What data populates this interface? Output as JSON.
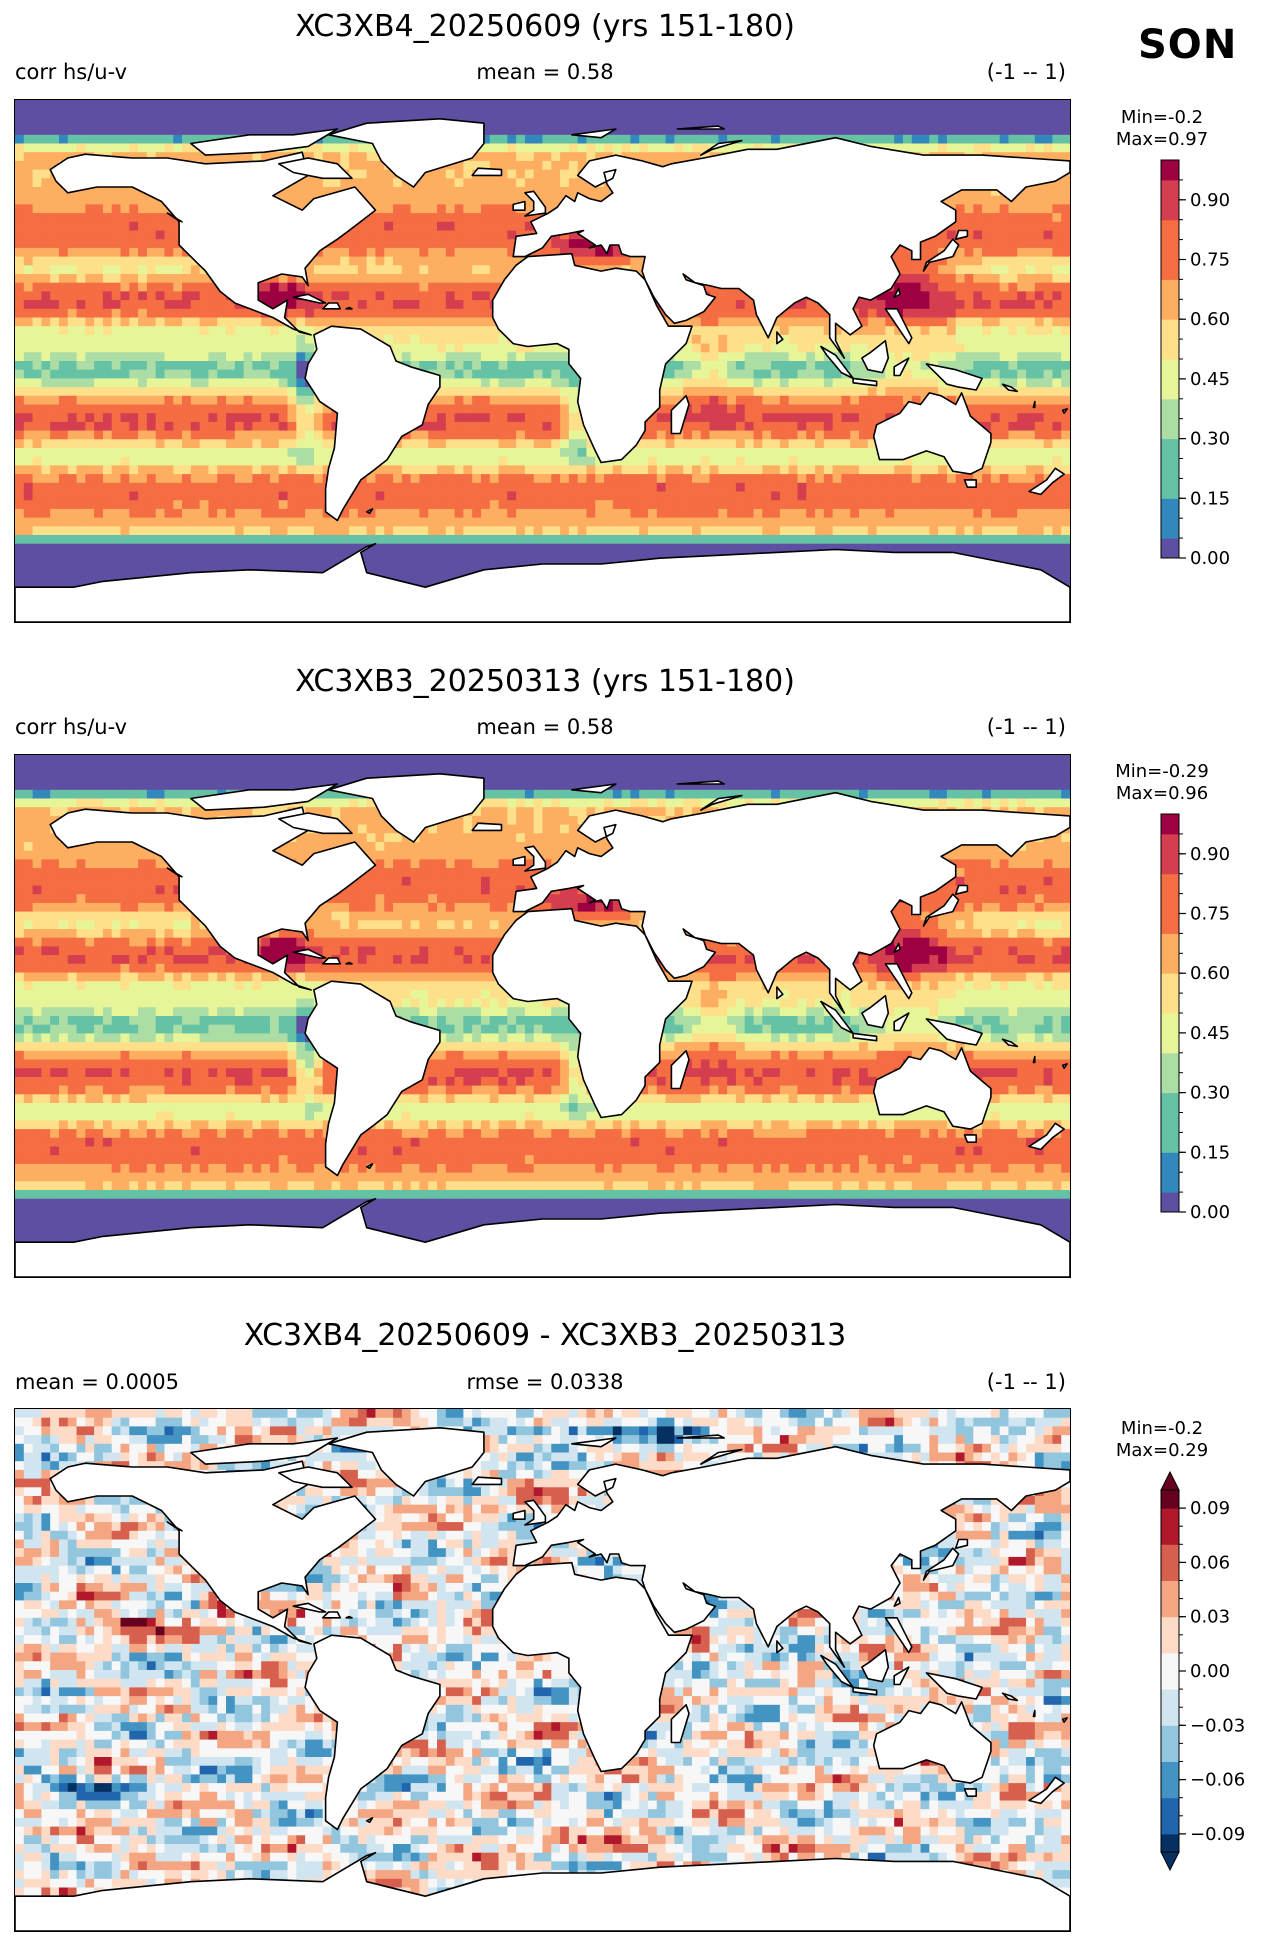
{
  "season": "SON",
  "panels": [
    {
      "id": "p1",
      "title": "XC3XB4_20250609 (yrs 151-180)",
      "left_label": "corr hs/u-v",
      "center_label": "mean = 0.58",
      "right_label": "(-1 -- 1)",
      "min_label": "Min=-0.2",
      "max_label": "Max=0.97",
      "colormap": "Spectral_r",
      "colorbar": {
        "ticks": [
          "0.00",
          "0.15",
          "0.30",
          "0.45",
          "0.60",
          "0.75",
          "0.90"
        ],
        "range": [
          0,
          1
        ],
        "extend": "none"
      }
    },
    {
      "id": "p2",
      "title": "XC3XB3_20250313 (yrs 151-180)",
      "left_label": "corr hs/u-v",
      "center_label": "mean = 0.58",
      "right_label": "(-1 -- 1)",
      "min_label": "Min=-0.29",
      "max_label": "Max=0.96",
      "colormap": "Spectral_r",
      "colorbar": {
        "ticks": [
          "0.00",
          "0.15",
          "0.30",
          "0.45",
          "0.60",
          "0.75",
          "0.90"
        ],
        "range": [
          0,
          1
        ],
        "extend": "none"
      }
    },
    {
      "id": "p3",
      "title": "XC3XB4_20250609 - XC3XB3_20250313",
      "left_label": "mean = 0.0005",
      "center_label": "rmse = 0.0338",
      "right_label": "(-1 -- 1)",
      "min_label": "Min=-0.2",
      "max_label": "Max=0.29",
      "colormap": "RdBu_r",
      "colorbar": {
        "ticks": [
          "−0.09",
          "−0.06",
          "−0.03",
          "0.00",
          "0.03",
          "0.06",
          "0.09"
        ],
        "range": [
          -0.1,
          0.1
        ],
        "extend": "both"
      }
    }
  ],
  "colors": {
    "spectral": [
      "#5e4fa2",
      "#3288bd",
      "#66c2a5",
      "#abdda4",
      "#e6f598",
      "#fee08b",
      "#fdae61",
      "#f46d43",
      "#d53e4f",
      "#9e0142"
    ],
    "rdbu": [
      "#053061",
      "#2166ac",
      "#4393c3",
      "#92c5de",
      "#d1e5f0",
      "#f7f7f7",
      "#fddbc7",
      "#f4a582",
      "#d6604d",
      "#b2182b",
      "#67001f"
    ]
  }
}
